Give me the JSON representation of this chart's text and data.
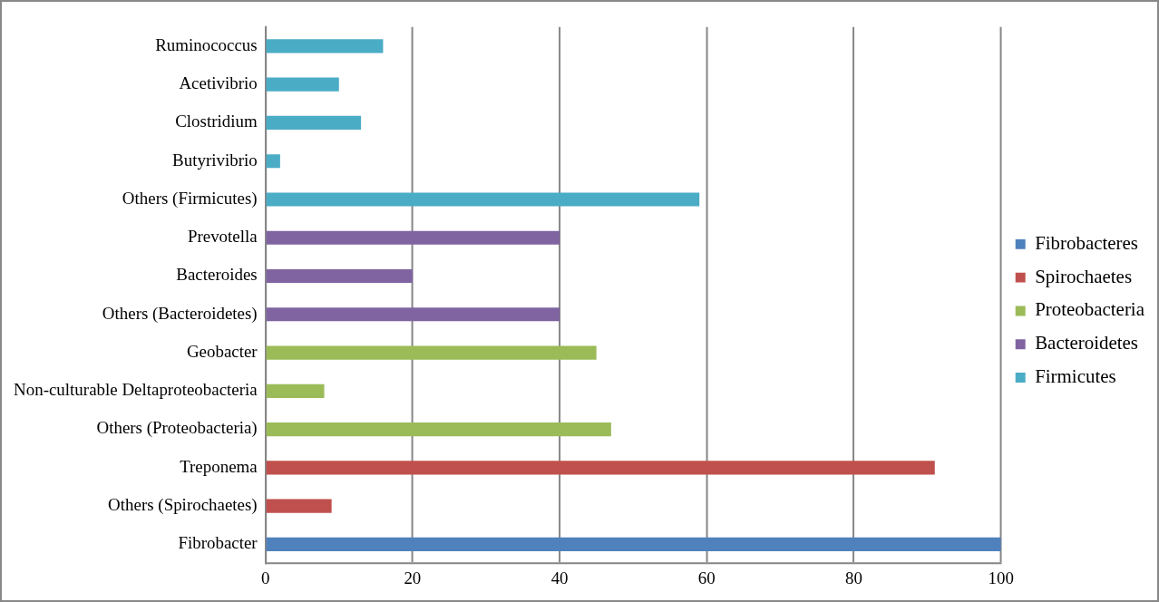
{
  "chart_data": {
    "type": "bar",
    "orientation": "horizontal",
    "categories": [
      "Ruminococcus",
      "Acetivibrio",
      "Clostridium",
      "Butyrivibrio",
      "Others (Firmicutes)",
      "Prevotella",
      "Bacteroides",
      "Others (Bacteroidetes)",
      "Geobacter",
      "Non-culturable Deltaproteobacteria",
      "Others (Proteobacteria)",
      "Treponema",
      "Others (Spirochaetes)",
      "Fibrobacter"
    ],
    "series": [
      {
        "name": "Fibrobacteres",
        "color": "#4f81bd",
        "values": [
          null,
          null,
          null,
          null,
          null,
          null,
          null,
          null,
          null,
          null,
          null,
          null,
          null,
          100
        ]
      },
      {
        "name": "Spirochaetes",
        "color": "#c0504d",
        "values": [
          null,
          null,
          null,
          null,
          null,
          null,
          null,
          null,
          null,
          null,
          null,
          91,
          9,
          null
        ]
      },
      {
        "name": "Proteobacteria",
        "color": "#9bbb59",
        "values": [
          null,
          null,
          null,
          null,
          null,
          null,
          null,
          null,
          45,
          8,
          47,
          null,
          null,
          null
        ]
      },
      {
        "name": "Bacteroidetes",
        "color": "#8064a2",
        "values": [
          null,
          null,
          null,
          null,
          null,
          40,
          20,
          40,
          null,
          null,
          null,
          null,
          null,
          null
        ]
      },
      {
        "name": "Firmicutes",
        "color": "#4bacc6",
        "values": [
          16,
          10,
          13,
          2,
          59,
          null,
          null,
          null,
          null,
          null,
          null,
          null,
          null,
          null
        ]
      }
    ],
    "xlim": [
      0,
      100
    ],
    "xticks": [
      0,
      20,
      40,
      60,
      80,
      100
    ],
    "grid": "x",
    "legend": "right"
  }
}
